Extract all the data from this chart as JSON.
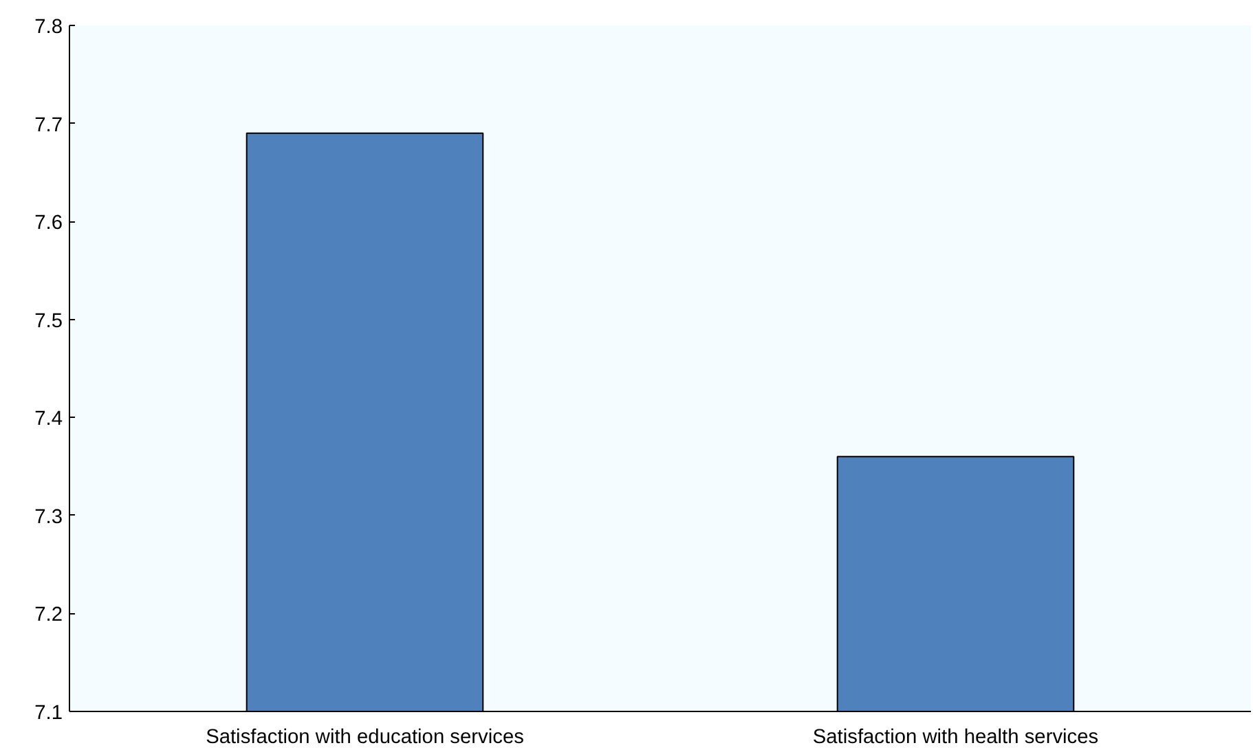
{
  "chart_data": {
    "type": "bar",
    "categories": [
      "Satisfaction with education services",
      "Satisfaction with health services"
    ],
    "values": [
      7.69,
      7.36
    ],
    "color": "#4f81bd",
    "ylim": [
      7.1,
      7.8
    ],
    "yticks": [
      7.1,
      7.2,
      7.3,
      7.4,
      7.5,
      7.6,
      7.7,
      7.8
    ],
    "grid": false
  }
}
